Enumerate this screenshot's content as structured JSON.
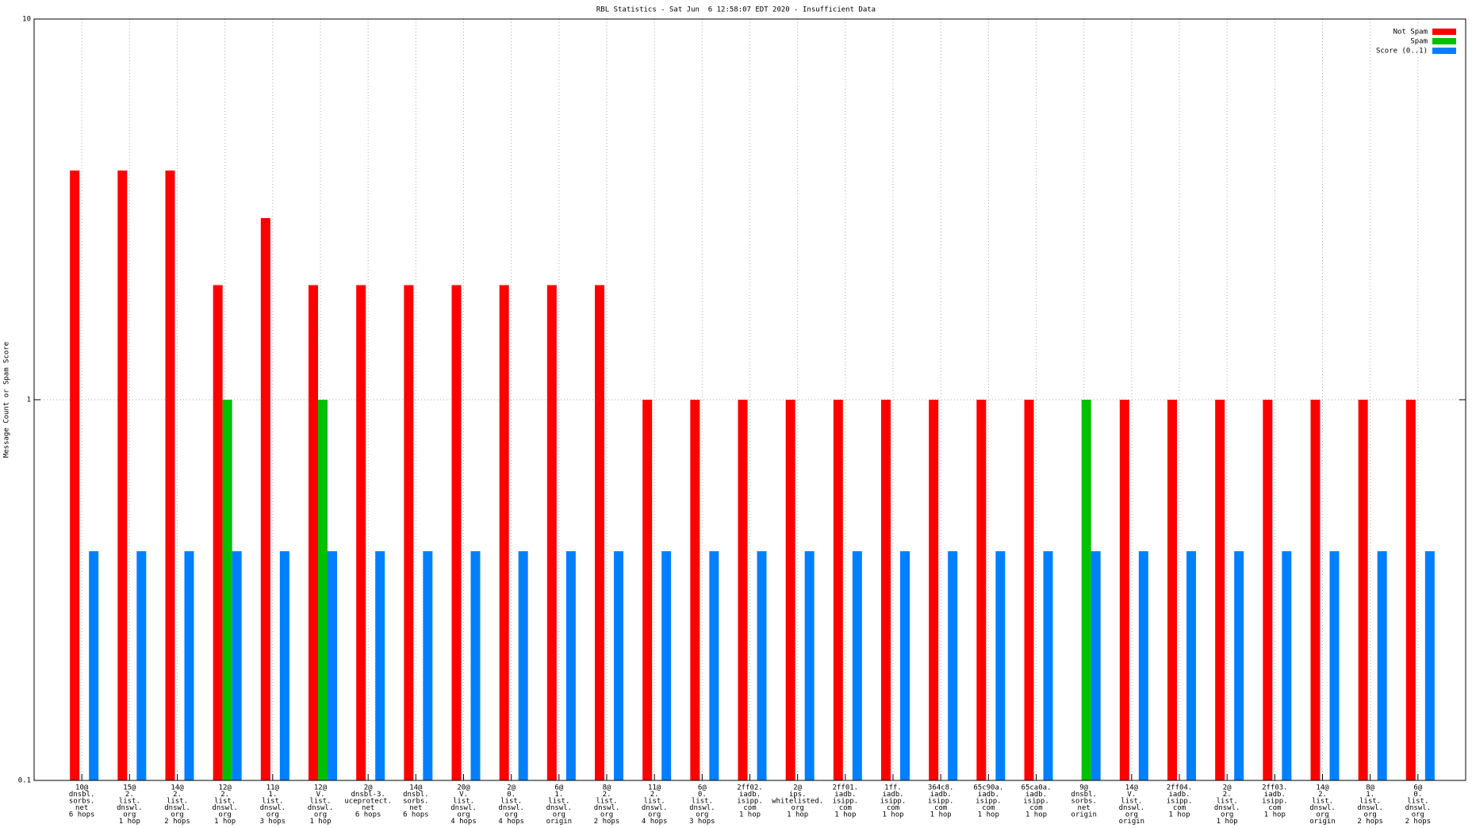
{
  "chart_data": {
    "type": "bar",
    "title": "RBL Statistics - Sat Jun  6 12:58:07 EDT 2020 - Insufficient Data",
    "y_label": "Message Count or Spam Score",
    "log_scale": true,
    "grid": true,
    "legend_position": "top-right",
    "ylim": [
      0.1,
      10
    ],
    "yticks": [
      0.1,
      1,
      10
    ],
    "categories": [
      [
        "10@",
        "dnsbl.",
        "sorbs.",
        "net",
        "6 hops"
      ],
      [
        "15@",
        "2.",
        "list.",
        "dnswl.",
        "org",
        "1 hop"
      ],
      [
        "14@",
        "2.",
        "list.",
        "dnswl.",
        "org",
        "2 hops"
      ],
      [
        "12@",
        "2.",
        "list.",
        "dnswl.",
        "org",
        "1 hop"
      ],
      [
        "11@",
        "1.",
        "list.",
        "dnswl.",
        "org",
        "3 hops"
      ],
      [
        "12@",
        "V.",
        "list.",
        "dnswl.",
        "org",
        "1 hop"
      ],
      [
        "2@",
        "dnsbl-3.",
        "uceprotect.",
        "net",
        "6 hops"
      ],
      [
        "14@",
        "dnsbl.",
        "sorbs.",
        "net",
        "6 hops"
      ],
      [
        "20@",
        "V.",
        "list.",
        "dnswl.",
        "org",
        "4 hops"
      ],
      [
        "2@",
        "0.",
        "list.",
        "dnswl.",
        "org",
        "4 hops"
      ],
      [
        "6@",
        "1.",
        "list.",
        "dnswl.",
        "org",
        "origin"
      ],
      [
        "8@",
        "2.",
        "list.",
        "dnswl.",
        "org",
        "2 hops"
      ],
      [
        "11@",
        "2.",
        "list.",
        "dnswl.",
        "org",
        "4 hops"
      ],
      [
        "6@",
        "0.",
        "list.",
        "dnswl.",
        "org",
        "3 hops"
      ],
      [
        "2ff02.",
        "iadb.",
        "isipp.",
        "com",
        "1 hop"
      ],
      [
        "2@",
        "ips.",
        "whitelisted.",
        "org",
        "1 hop"
      ],
      [
        "2ff01.",
        "iadb.",
        "isipp.",
        "com",
        "1 hop"
      ],
      [
        "1ff.",
        "iadb.",
        "isipp.",
        "com",
        "1 hop"
      ],
      [
        "364c8.",
        "iadb.",
        "isipp.",
        "com",
        "1 hop"
      ],
      [
        "65c90a.",
        "iadb.",
        "isipp.",
        "com",
        "1 hop"
      ],
      [
        "65ca0a.",
        "iadb.",
        "isipp.",
        "com",
        "1 hop"
      ],
      [
        "9@",
        "dnsbl.",
        "sorbs.",
        "net",
        "origin"
      ],
      [
        "14@",
        "V.",
        "list.",
        "dnswl.",
        "org",
        "origin"
      ],
      [
        "2ff04.",
        "iadb.",
        "isipp.",
        "com",
        "1 hop"
      ],
      [
        "2@",
        "2.",
        "list.",
        "dnswl.",
        "org",
        "1 hop"
      ],
      [
        "2ff03.",
        "iadb.",
        "isipp.",
        "com",
        "1 hop"
      ],
      [
        "14@",
        "2.",
        "list.",
        "dnswl.",
        "org",
        "origin"
      ],
      [
        "8@",
        "1.",
        "list.",
        "dnswl.",
        "org",
        "2 hops"
      ],
      [
        "6@",
        "0.",
        "list.",
        "dnswl.",
        "org",
        "2 hops"
      ]
    ],
    "series": [
      {
        "name": "Not Spam",
        "color": "#ff0000",
        "values": [
          4,
          4,
          4,
          2,
          3,
          2,
          2,
          2,
          2,
          2,
          2,
          2,
          1,
          1,
          1,
          1,
          1,
          1,
          1,
          1,
          1,
          null,
          1,
          1,
          1,
          1,
          1,
          1,
          1
        ]
      },
      {
        "name": "Spam",
        "color": "#00c000",
        "values": [
          null,
          null,
          null,
          1,
          null,
          1,
          null,
          null,
          null,
          null,
          null,
          null,
          null,
          null,
          null,
          null,
          null,
          null,
          null,
          null,
          null,
          1,
          null,
          null,
          null,
          null,
          null,
          null,
          null
        ]
      },
      {
        "name": "Score (0..1)",
        "color": "#0080ff",
        "values": [
          0.4,
          0.4,
          0.4,
          0.4,
          0.4,
          0.4,
          0.4,
          0.4,
          0.4,
          0.4,
          0.4,
          0.4,
          0.4,
          0.4,
          0.4,
          0.4,
          0.4,
          0.4,
          0.4,
          0.4,
          0.4,
          0.4,
          0.4,
          0.4,
          0.4,
          0.4,
          0.4,
          0.4,
          0.4
        ]
      }
    ]
  }
}
